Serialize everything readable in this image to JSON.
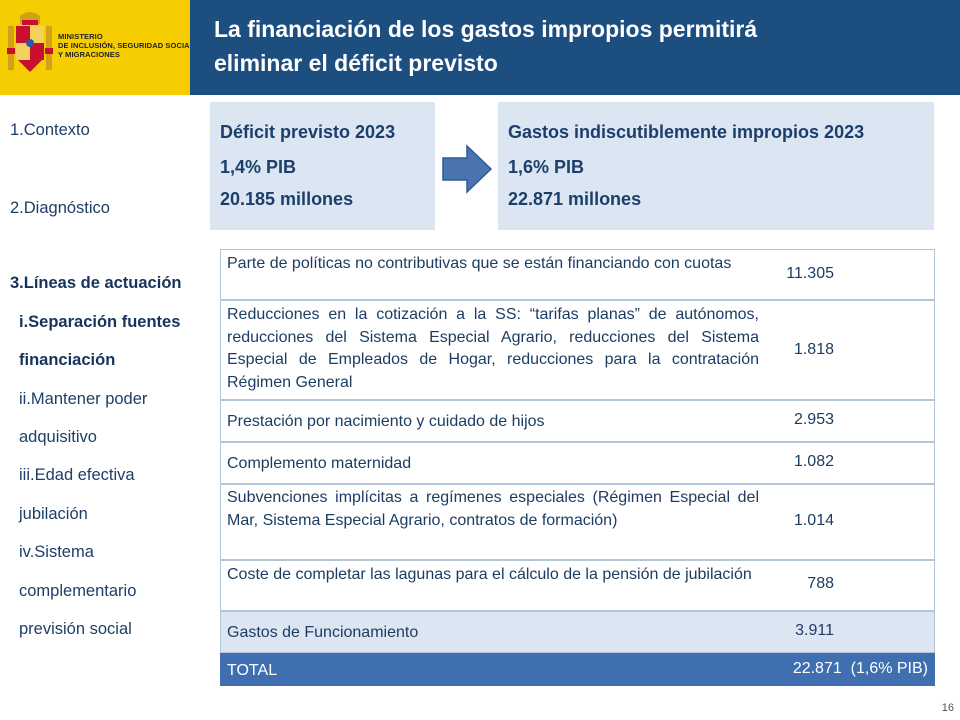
{
  "header": {
    "ministry_lines": [
      "MINISTERIO",
      "DE INCLUSIÓN, SEGURIDAD SOCIAL",
      "Y MIGRACIONES"
    ],
    "title_line1": "La financiación de los gastos impropios permitirá",
    "title_line2": "eliminar el déficit previsto"
  },
  "sidebar": {
    "items": [
      {
        "label": "1.Contexto"
      },
      {
        "label": "2.Diagnóstico"
      },
      {
        "label": "3.Líneas de actuación"
      }
    ],
    "subitems": [
      {
        "label": "i.Separación fuentes"
      },
      {
        "label": "financiación"
      },
      {
        "label": "ii.Mantener poder"
      },
      {
        "label": "adquisitivo"
      },
      {
        "label": "iii.Edad efectiva"
      },
      {
        "label": "jubilación"
      },
      {
        "label": "iv.Sistema"
      },
      {
        "label": "complementario"
      },
      {
        "label": "previsión social"
      }
    ]
  },
  "deficit_box": {
    "title": "Déficit previsto 2023",
    "pct": "1,4% PIB",
    "amount": "20.185 millones"
  },
  "gastos_box": {
    "title": "Gastos indiscutiblemente impropios 2023",
    "pct": "1,6% PIB",
    "amount": "22.871 millones"
  },
  "table": {
    "rows": [
      {
        "desc": "Parte de políticas no contributivas que se están financiando con cuotas",
        "value": "11.305"
      },
      {
        "desc": "Reducciones en la cotización a la SS: “tarifas planas” de autónomos, reducciones del Sistema Especial Agrario, reducciones del Sistema Especial de Empleados de Hogar, reducciones para la contratación Régimen General",
        "value": "1.818"
      },
      {
        "desc": "Prestación por nacimiento y cuidado de hijos",
        "value": "2.953"
      },
      {
        "desc": "Complemento maternidad",
        "value": "1.082"
      },
      {
        "desc": "Subvenciones implícitas a regímenes especiales (Régimen Especial del Mar, Sistema Especial Agrario, contratos de formación)",
        "value": "1.014"
      },
      {
        "desc": "Coste de completar las lagunas para el cálculo de la pensión de jubilación",
        "value": "788"
      },
      {
        "desc": "Gastos de Funcionamiento",
        "value": "3.911"
      },
      {
        "desc": "TOTAL",
        "value": "22.871  (1,6% PIB)"
      }
    ]
  },
  "page": {
    "number": "16"
  },
  "colors": {
    "header_blue": "#1d4e80",
    "logo_yellow": "#f6cd00",
    "box_fill": "#dce6f2",
    "total_fill": "#3f6fb0",
    "arrow_fill": "#4a74b0"
  }
}
